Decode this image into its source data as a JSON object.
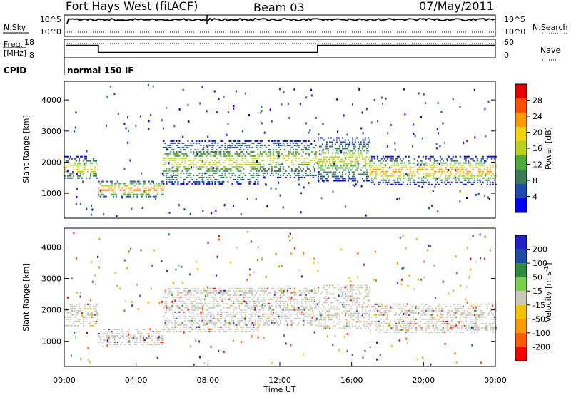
{
  "header": {
    "station": "Fort Hays West (fitACF)",
    "beam": "Beam 03",
    "date": "07/May/2011"
  },
  "panel_labels": {
    "nsky": "N.Sky",
    "nsearch": "N.Search",
    "freq_line1": "Freq.",
    "freq_line2": "[MHz]",
    "nave": "Nave",
    "cpid": "CPID",
    "cpid_value": "normal 150 IF"
  },
  "colors": {
    "nsky_line": "#000000",
    "power_scale": [
      "#0000ff",
      "#1e4aa8",
      "#3a7a55",
      "#4cab3a",
      "#b5d21a",
      "#f2d312",
      "#ff9b00",
      "#ff4e00",
      "#e80000"
    ],
    "velocity_scale": [
      "#ff0000",
      "#ff5a00",
      "#ff9b00",
      "#f2c200",
      "#c8c8c0",
      "#7bd14b",
      "#2e8b3d",
      "#1e4aa8",
      "#2222cc"
    ]
  },
  "chart_data": [
    {
      "type": "line",
      "panel": "noise",
      "left_scale_ticks": [
        "10^5",
        "10^0"
      ],
      "right_scale_ticks": [
        "10^5",
        "10^0"
      ],
      "left_label": "N.Sky",
      "right_label": "N.Search"
    },
    {
      "type": "line",
      "panel": "frequency",
      "left_label_line1": "Freq.",
      "left_label_line2": "[MHz]",
      "right_label": "Nave",
      "left_ticks": [
        "18",
        "8"
      ],
      "right_ticks": [
        "60",
        "0"
      ],
      "freq_steps": [
        [
          0,
          14.7
        ],
        [
          1.9,
          10.8
        ],
        [
          14.1,
          14.7
        ],
        [
          24,
          14.7
        ]
      ],
      "nave_level": 40
    },
    {
      "type": "heatmap",
      "panel": "power",
      "ylabel": "Slant Range [km]",
      "ylim": [
        200,
        4600
      ],
      "yticks": [
        "1000",
        "2000",
        "3000",
        "4000"
      ],
      "colorbar_label": "Power [dB]",
      "colorbar_ticks": [
        "4",
        "8",
        "12",
        "16",
        "20",
        "24",
        "28"
      ],
      "colorbar_range": [
        0,
        32
      ],
      "bands": [
        {
          "t": [
            0.0,
            1.9
          ],
          "r": [
            1500,
            2200
          ],
          "peak": 22
        },
        {
          "t": [
            1.9,
            5.5
          ],
          "r": [
            900,
            1400
          ],
          "peak": 30
        },
        {
          "t": [
            5.5,
            10.8
          ],
          "r": [
            1300,
            2700
          ],
          "peak": 18
        },
        {
          "t": [
            10.8,
            14.0
          ],
          "r": [
            1500,
            2700
          ],
          "peak": 18
        },
        {
          "t": [
            14.1,
            17.0
          ],
          "r": [
            1400,
            2800
          ],
          "peak": 18
        },
        {
          "t": [
            17.0,
            24.0
          ],
          "r": [
            1300,
            2200
          ],
          "peak": 24
        }
      ]
    },
    {
      "type": "heatmap",
      "panel": "velocity",
      "ylabel": "Slant Range [km]",
      "ylim": [
        200,
        4600
      ],
      "yticks": [
        "1000",
        "2000",
        "3000",
        "4000"
      ],
      "xlabel": "Time UT",
      "xticks": [
        "00:00",
        "04:00",
        "08:00",
        "12:00",
        "16:00",
        "20:00",
        "00:00"
      ],
      "xlim": [
        0,
        24
      ],
      "colorbar_label": "Velocity [m s^-1]",
      "colorbar_ticks": [
        "-200",
        "-100",
        "-50",
        "-15",
        "15",
        "50",
        "100",
        "200"
      ],
      "dominant_value_range": [
        -15,
        15
      ]
    }
  ]
}
